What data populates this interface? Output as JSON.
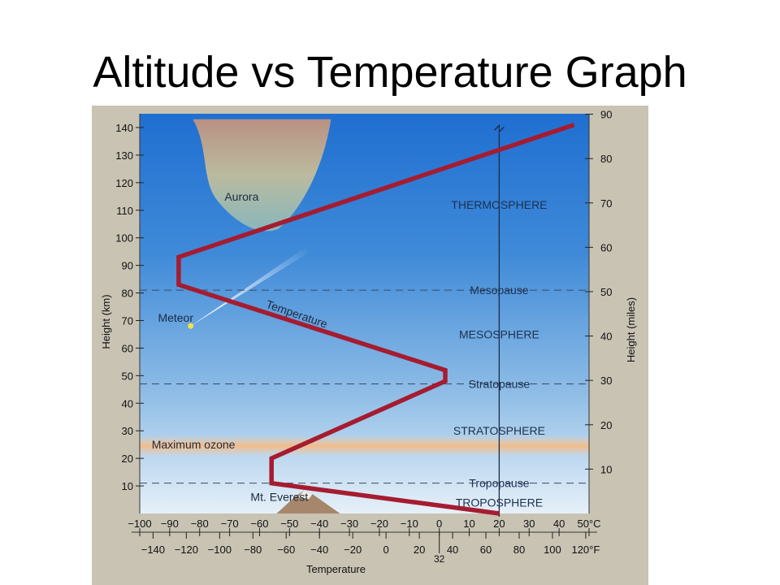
{
  "slide": {
    "title": "Altitude vs Temperature Graph"
  },
  "colors": {
    "frame": "#c8c3b3",
    "sky_top": "#1f6fd1",
    "sky_bottom": "#dceaf6",
    "temperature_line": "#a51c30",
    "ozone_band": "#f6c79a"
  },
  "chart_data": {
    "type": "line",
    "title": "",
    "xlabel": "Temperature",
    "ylabel_left": "Height (km)",
    "ylabel_right": "Height (miles)",
    "xlim_celsius": [
      -100,
      50
    ],
    "ylim_km": [
      0,
      145
    ],
    "y_ticks_km": [
      "10",
      "20",
      "30",
      "40",
      "50",
      "60",
      "70",
      "80",
      "90",
      "100",
      "110",
      "120",
      "130",
      "140"
    ],
    "y_tick_values_km": [
      10,
      20,
      30,
      40,
      50,
      60,
      70,
      80,
      90,
      100,
      110,
      120,
      130,
      140
    ],
    "y_ticks_miles": [
      "10",
      "20",
      "30",
      "40",
      "50",
      "60",
      "70",
      "80",
      "90"
    ],
    "y_tick_values_miles": [
      10,
      20,
      30,
      40,
      50,
      60,
      70,
      80,
      90
    ],
    "x_ticks_celsius": [
      "−100",
      "−90",
      "−80",
      "−70",
      "−60",
      "−50",
      "−40",
      "−30",
      "−20",
      "−10",
      "0",
      "10",
      "20",
      "30",
      "40",
      "50°C"
    ],
    "x_tick_values_celsius": [
      -100,
      -90,
      -80,
      -70,
      -60,
      -50,
      -40,
      -30,
      -20,
      -10,
      0,
      10,
      20,
      30,
      40,
      50
    ],
    "x_ticks_fahrenheit": [
      "−140",
      "−120",
      "−100",
      "−80",
      "−60",
      "−40",
      "−20",
      "0",
      "20",
      "40",
      "60",
      "80",
      "100",
      "120°F"
    ],
    "x_tick_values_fahrenheit": [
      -140,
      -120,
      -100,
      -80,
      -60,
      -40,
      -20,
      0,
      20,
      40,
      60,
      80,
      100,
      120
    ],
    "freezing_label": "32",
    "freezing_value_f": 32,
    "series": [
      {
        "name": "Temperature",
        "points": [
          [
            20,
            0
          ],
          [
            -56,
            11
          ],
          [
            -56,
            20
          ],
          [
            2,
            48
          ],
          [
            2,
            52
          ],
          [
            -87,
            83
          ],
          [
            -87,
            93
          ],
          [
            45,
            141
          ]
        ]
      }
    ],
    "boundaries": [
      {
        "name": "Tropopause",
        "height_km": 11
      },
      {
        "name": "Stratopause",
        "height_km": 47
      },
      {
        "name": "Mesopause",
        "height_km": 81
      }
    ],
    "layers": [
      {
        "name": "TROPOSPHERE",
        "height_km": 4
      },
      {
        "name": "STRATOSPHERE",
        "height_km": 30
      },
      {
        "name": "MESOSPHERE",
        "height_km": 65
      },
      {
        "name": "THERMOSPHERE",
        "height_km": 112
      }
    ],
    "annotations": [
      {
        "text": "Aurora",
        "temp_c": -66,
        "height_km": 115
      },
      {
        "text": "Meteor",
        "temp_c": -88,
        "height_km": 71
      },
      {
        "text": "Maximum ozone",
        "temp_c": -96,
        "height_km": 25
      },
      {
        "text": "Mt. Everest",
        "temp_c": -63,
        "height_km": 6
      }
    ],
    "ozone_band_km": [
      21,
      28
    ],
    "temperature_label": "Temperature"
  }
}
